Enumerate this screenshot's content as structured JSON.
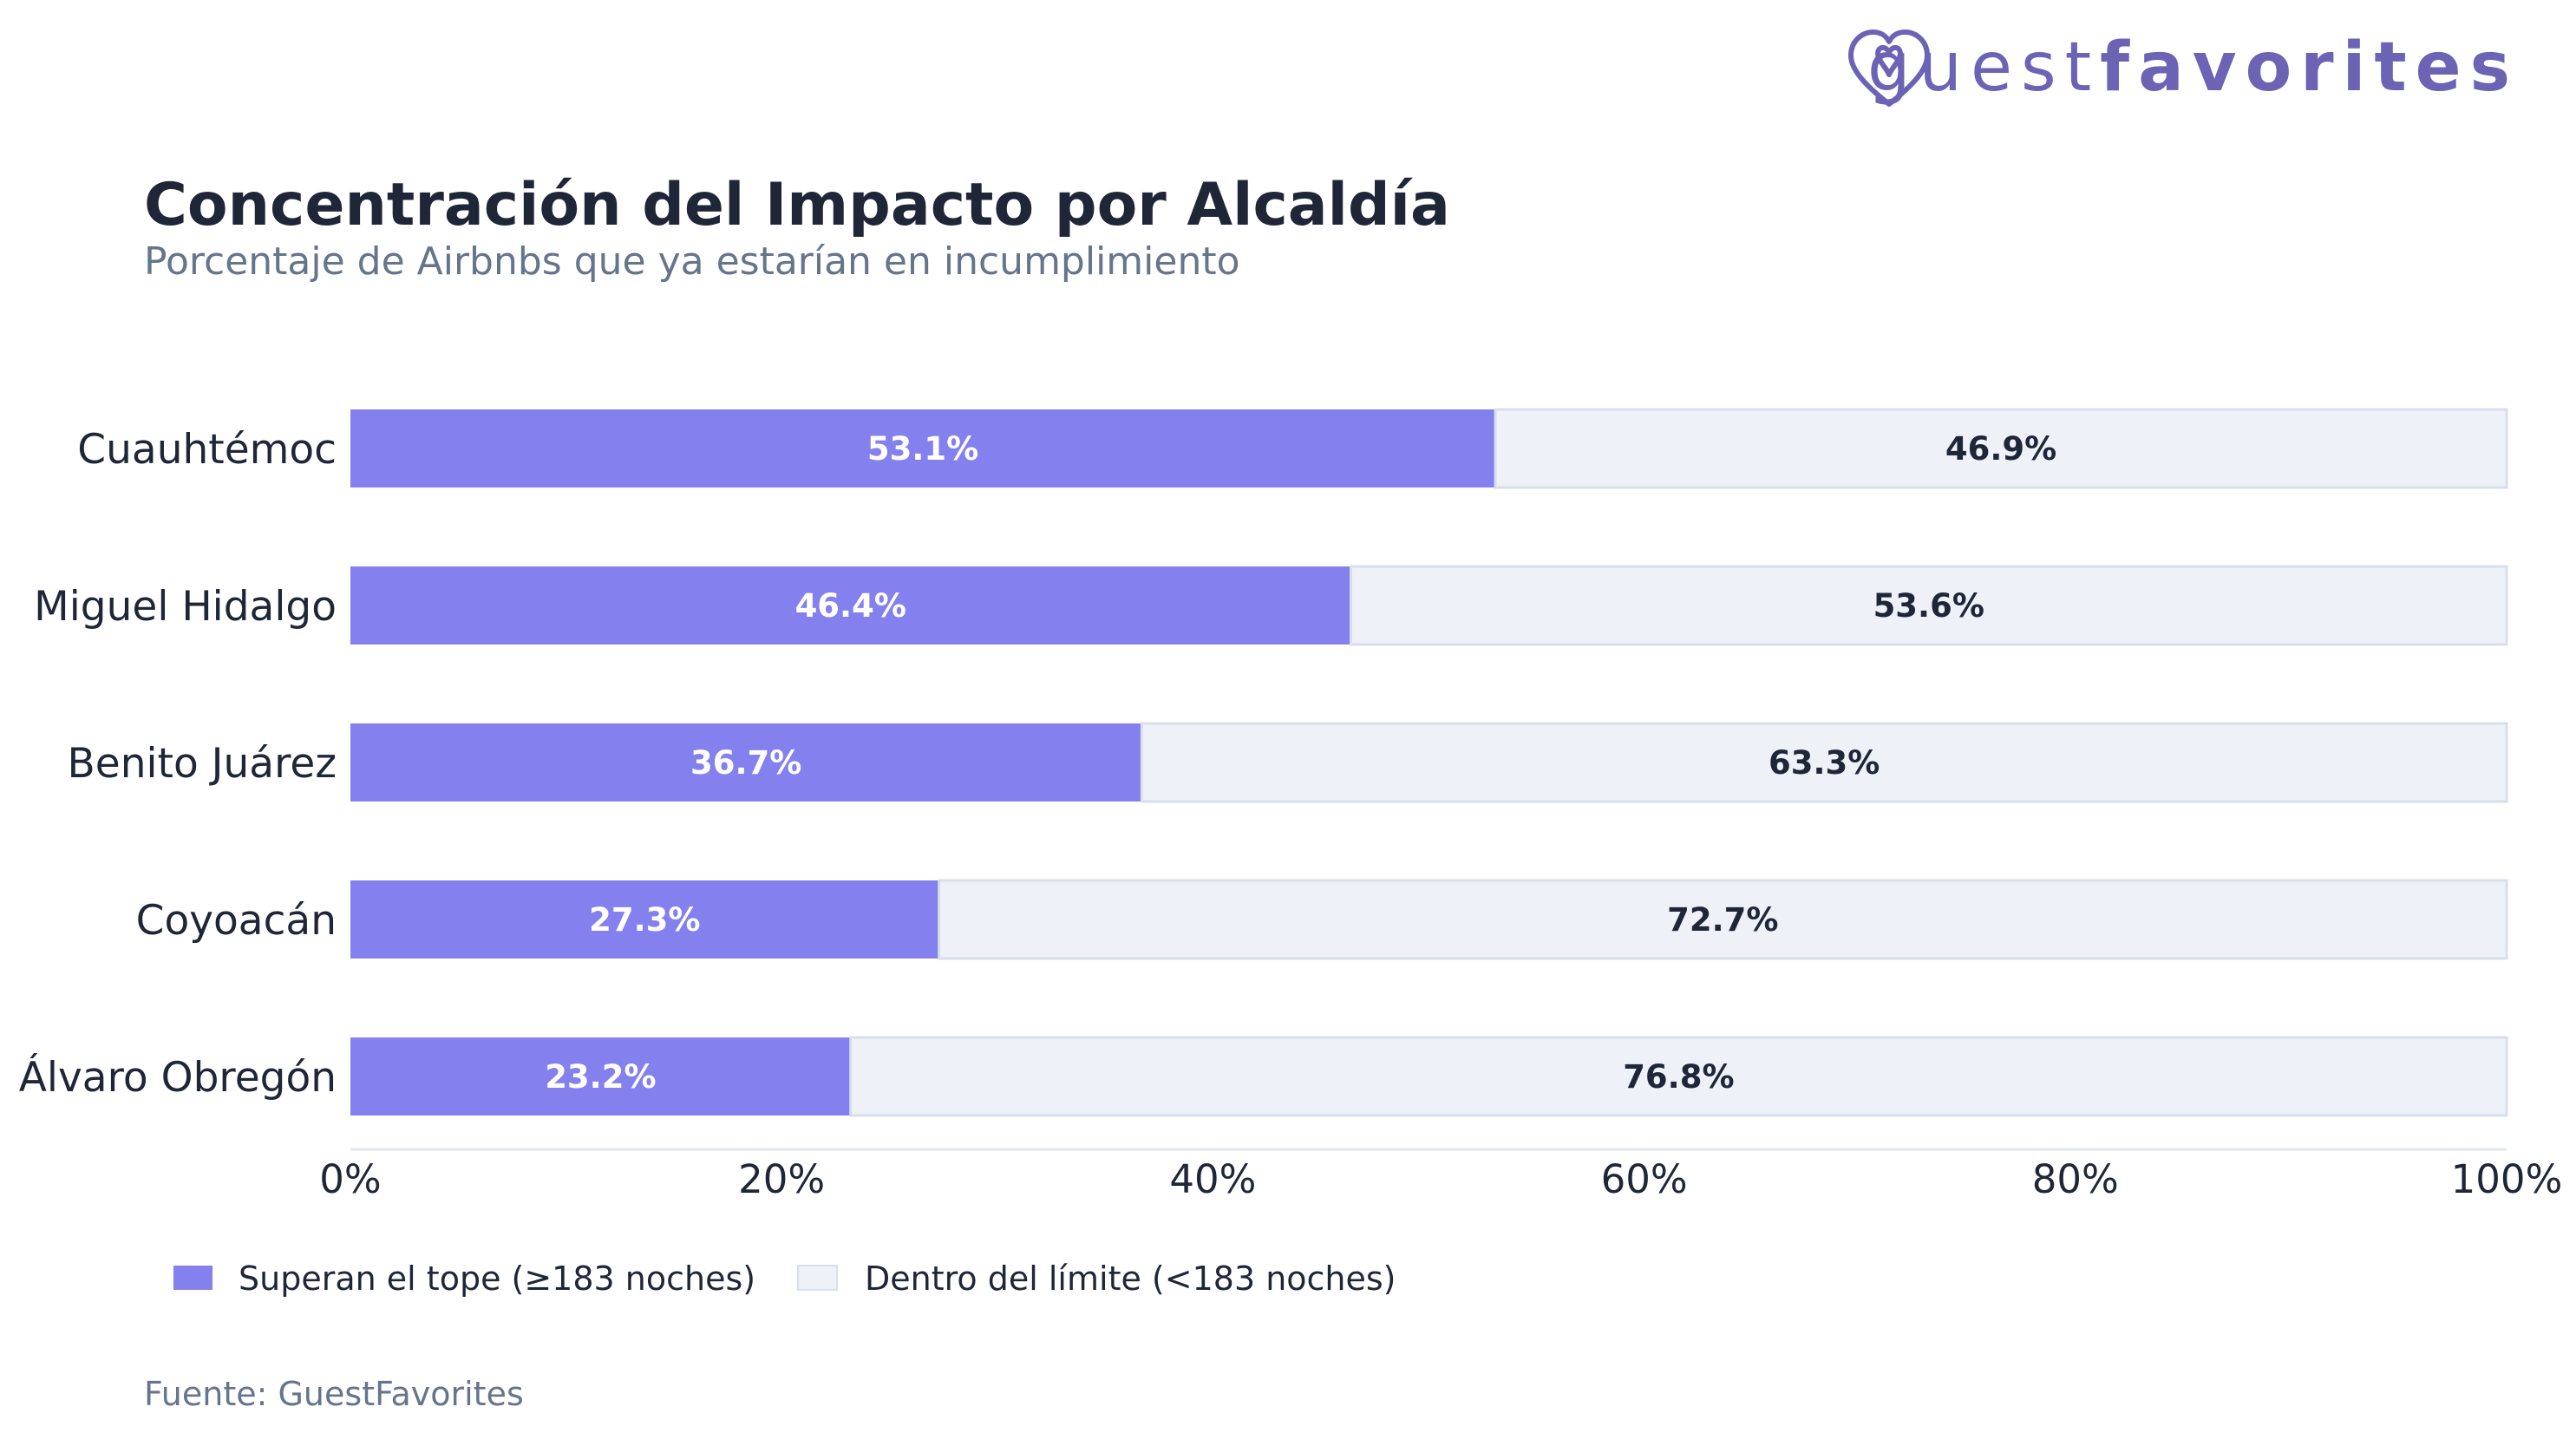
{
  "logo": {
    "text_light": "guest",
    "text_bold": "favorites",
    "color": "#6c63b5"
  },
  "colors": {
    "exceed": "#8480ee",
    "within": "#eef2f8",
    "within_border": "#d8dfea",
    "title": "#1e2638",
    "subtitle": "#65758b",
    "axis": "#e2e8f0",
    "label_dark": "#1e2638",
    "label_light": "#ffffff"
  },
  "chart_data": {
    "type": "bar",
    "orientation": "horizontal",
    "stacked": true,
    "title": "Concentración del Impacto por Alcaldía",
    "subtitle": "Porcentaje de Airbnbs que ya estarían en incumplimiento",
    "categories": [
      "Cuauhtémoc",
      "Miguel Hidalgo",
      "Benito Juárez",
      "Coyoacán",
      "Álvaro Obregón"
    ],
    "series": [
      {
        "name": "Superan el tope (≥183 noches)",
        "values": [
          53.1,
          46.4,
          36.7,
          27.3,
          23.2
        ],
        "labels": [
          "53.1%",
          "46.4%",
          "36.7%",
          "27.3%",
          "23.2%"
        ]
      },
      {
        "name": "Dentro del límite (<183 noches)",
        "values": [
          46.9,
          53.6,
          63.3,
          72.7,
          76.8
        ],
        "labels": [
          "46.9%",
          "53.6%",
          "63.3%",
          "72.7%",
          "76.8%"
        ]
      }
    ],
    "xlim": [
      0,
      100
    ],
    "xticks": [
      "0%",
      "20%",
      "40%",
      "60%",
      "80%",
      "100%"
    ],
    "grid": false,
    "legend_position": "bottom-left",
    "source": "Fuente: GuestFavorites"
  }
}
